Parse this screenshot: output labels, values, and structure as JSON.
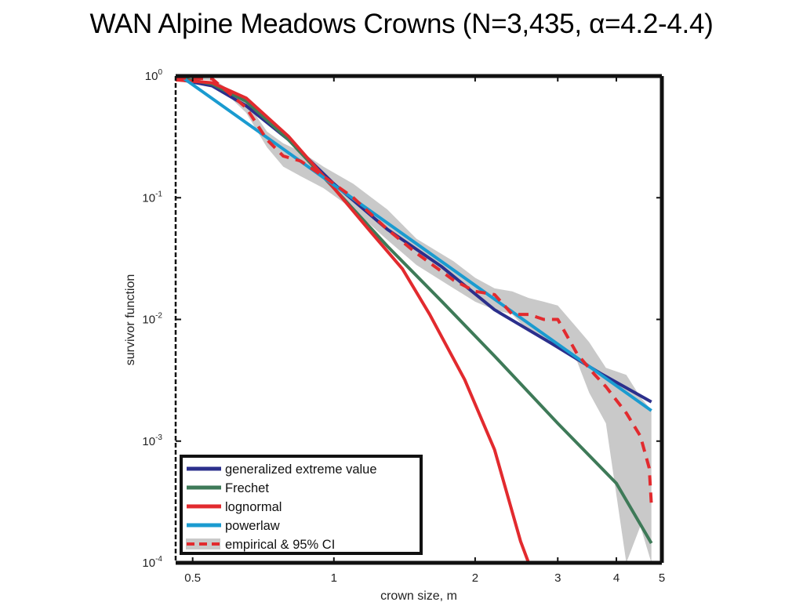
{
  "title": "WAN Alpine Meadows Crowns (N=3,435, α=4.2-4.4)",
  "colors": {
    "gev": "#2b2f8c",
    "frechet": "#3e7a58",
    "lognormal": "#e22a2e",
    "powerlaw": "#1a9bd0",
    "empirical": "#e22a2e",
    "ci_band": "#c9c9c9",
    "axes": "#111111"
  },
  "chart_data": {
    "type": "line",
    "title": "WAN Alpine Meadows Crowns (N=3,435, α=4.2-4.4)",
    "xlabel": "crown size, m",
    "ylabel": "survivor function",
    "xscale": "log",
    "yscale": "log",
    "xlim": [
      0.46,
      5.0
    ],
    "ylim": [
      0.0001,
      1
    ],
    "x_ticks": [
      "0.5",
      "1",
      "2",
      "3",
      "4",
      "5"
    ],
    "y_ticks": [
      {
        "base": "10",
        "exp": "0"
      },
      {
        "base": "10",
        "exp": "-1"
      },
      {
        "base": "10",
        "exp": "-2"
      },
      {
        "base": "10",
        "exp": "-3"
      },
      {
        "base": "10",
        "exp": "-4"
      }
    ],
    "grid": false,
    "legend_position": "bottom-left",
    "legend": [
      {
        "label": "generalized extreme value",
        "color": "gev",
        "style": "solid"
      },
      {
        "label": "Frechet",
        "color": "frechet",
        "style": "solid"
      },
      {
        "label": "lognormal",
        "color": "lognormal",
        "style": "solid"
      },
      {
        "label": "powerlaw",
        "color": "powerlaw",
        "style": "solid"
      },
      {
        "label": "empirical & 95% CI",
        "color": "empirical",
        "style": "dashed-with-band"
      }
    ],
    "series": [
      {
        "name": "generalized extreme value",
        "color": "gev",
        "style": "solid",
        "x": [
          0.48,
          0.55,
          0.65,
          0.8,
          1.0,
          1.3,
          1.7,
          2.2,
          2.9,
          3.7,
          4.75
        ],
        "y": [
          0.92,
          0.83,
          0.57,
          0.3,
          0.13,
          0.055,
          0.027,
          0.012,
          0.0064,
          0.0036,
          0.0021
        ]
      },
      {
        "name": "Frechet",
        "color": "frechet",
        "style": "solid",
        "x": [
          0.48,
          0.55,
          0.65,
          0.8,
          1.0,
          1.3,
          1.7,
          2.2,
          3.0,
          4.0,
          4.75
        ],
        "y": [
          0.95,
          0.86,
          0.62,
          0.3,
          0.12,
          0.04,
          0.014,
          0.005,
          0.0014,
          0.00045,
          0.000145
        ]
      },
      {
        "name": "lognormal",
        "color": "lognormal",
        "style": "solid",
        "x": [
          0.46,
          0.55,
          0.65,
          0.8,
          1.0,
          1.2,
          1.4,
          1.6,
          1.9,
          2.2,
          2.5,
          2.6
        ],
        "y": [
          0.93,
          0.88,
          0.66,
          0.32,
          0.12,
          0.052,
          0.026,
          0.011,
          0.0032,
          0.00085,
          0.00015,
          0.0001
        ]
      },
      {
        "name": "powerlaw",
        "color": "powerlaw",
        "style": "solid",
        "x": [
          0.48,
          4.75
        ],
        "y": [
          0.95,
          0.00178
        ]
      },
      {
        "name": "empirical & 95% CI",
        "color": "empirical",
        "style": "dashed",
        "x": [
          0.46,
          0.55,
          0.65,
          0.72,
          0.78,
          0.85,
          0.95,
          1.1,
          1.3,
          1.5,
          1.8,
          2.0,
          2.2,
          2.4,
          2.6,
          2.8,
          3.0,
          3.3,
          3.6,
          3.8,
          4.2,
          4.5,
          4.7,
          4.75
        ],
        "y": [
          0.97,
          0.95,
          0.55,
          0.3,
          0.22,
          0.2,
          0.15,
          0.1,
          0.055,
          0.035,
          0.021,
          0.017,
          0.016,
          0.011,
          0.011,
          0.01,
          0.01,
          0.0052,
          0.0035,
          0.0028,
          0.0017,
          0.0011,
          0.0006,
          0.0003
        ],
        "ci": {
          "x": [
            0.47,
            0.55,
            0.65,
            0.72,
            0.78,
            0.85,
            0.95,
            1.1,
            1.3,
            1.5,
            1.8,
            2.0,
            2.2,
            2.4,
            2.6,
            2.8,
            3.0,
            3.3,
            3.5,
            3.8,
            4.2,
            4.5,
            4.75
          ],
          "upper": [
            0.97,
            0.96,
            0.62,
            0.35,
            0.28,
            0.24,
            0.18,
            0.13,
            0.08,
            0.046,
            0.03,
            0.022,
            0.018,
            0.017,
            0.015,
            0.014,
            0.013,
            0.0085,
            0.0065,
            0.004,
            0.0035,
            0.0023,
            0.0018
          ],
          "lower": [
            0.96,
            0.92,
            0.5,
            0.26,
            0.18,
            0.15,
            0.12,
            0.08,
            0.045,
            0.028,
            0.018,
            0.014,
            0.012,
            0.011,
            0.008,
            0.007,
            0.0065,
            0.0045,
            0.0025,
            0.0014,
            0.0001,
            0.0002,
            0.0001
          ]
        }
      }
    ]
  }
}
